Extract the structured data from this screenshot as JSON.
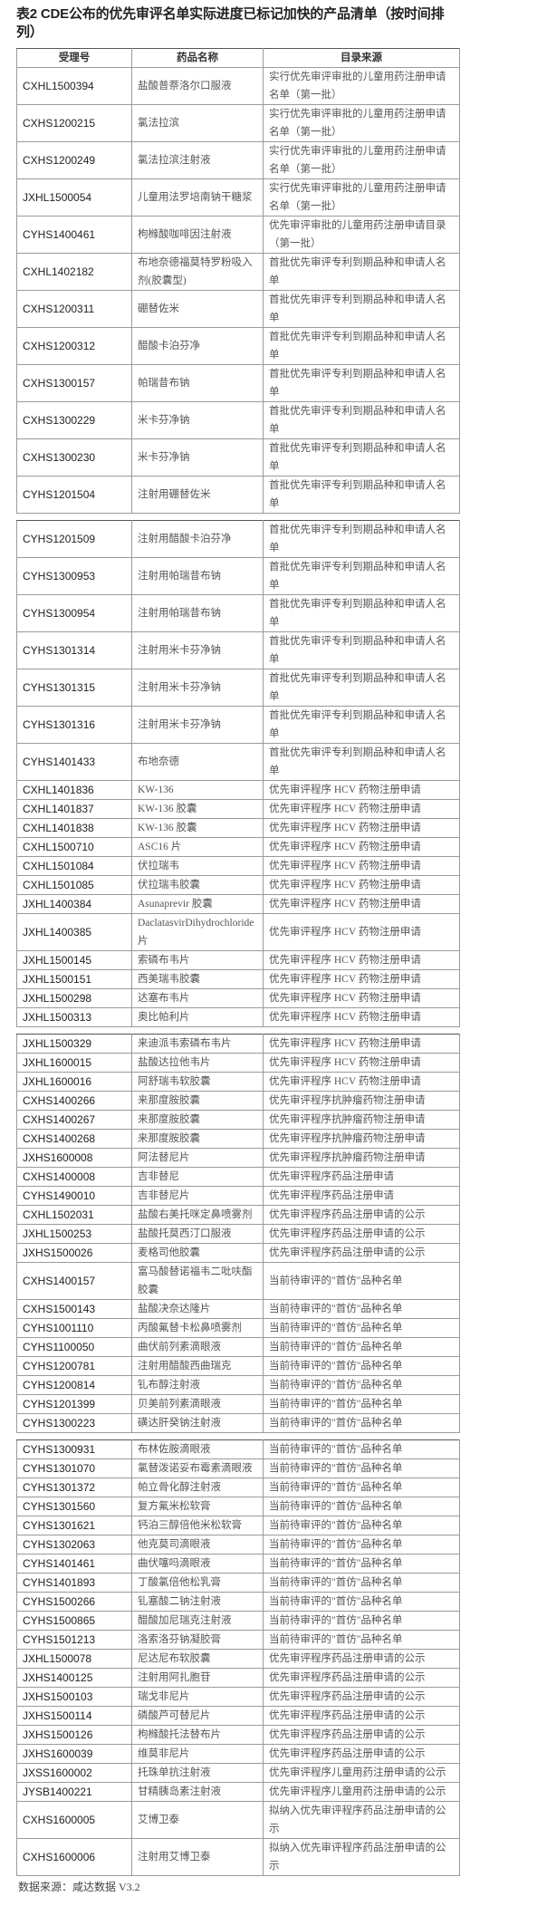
{
  "title": "表2 CDE公布的优先审评名单实际进度已标记加快的产品清单（按时间排列）",
  "headers": [
    "受理号",
    "药品名称",
    "目录来源"
  ],
  "segments": [
    [
      [
        "CXHL1500394",
        "盐酸普萘洛尔口服液",
        "实行优先审评审批的儿童用药注册申请名单（第一批）"
      ],
      [
        "CXHS1200215",
        "氯法拉滨",
        "实行优先审评审批的儿童用药注册申请名单（第一批）"
      ],
      [
        "CXHS1200249",
        "氯法拉滨注射液",
        "实行优先审评审批的儿童用药注册申请名单（第一批）"
      ],
      [
        "JXHL1500054",
        "儿童用法罗培南钠干糖浆",
        "实行优先审评审批的儿童用药注册申请名单（第一批）"
      ],
      [
        "CYHS1400461",
        "枸橼酸咖啡因注射液",
        "优先审评审批的儿童用药注册申请目录（第一批）"
      ],
      [
        "CXHL1402182",
        "布地奈德福莫特罗粉吸入剂(胶囊型)",
        "首批优先审评专利到期品种和申请人名单"
      ],
      [
        "CXHS1200311",
        "硼替佐米",
        "首批优先审评专利到期品种和申请人名单"
      ],
      [
        "CXHS1200312",
        "醋酸卡泊芬净",
        "首批优先审评专利到期品种和申请人名单"
      ],
      [
        "CXHS1300157",
        "帕瑞昔布钠",
        "首批优先审评专利到期品种和申请人名单"
      ],
      [
        "CXHS1300229",
        "米卡芬净钠",
        "首批优先审评专利到期品种和申请人名单"
      ],
      [
        "CXHS1300230",
        "米卡芬净钠",
        "首批优先审评专利到期品种和申请人名单"
      ],
      [
        "CYHS1201504",
        "注射用硼替佐米",
        "首批优先审评专利到期品种和申请人名单"
      ]
    ],
    [
      [
        "CYHS1201509",
        "注射用醋酸卡泊芬净",
        "首批优先审评专利到期品种和申请人名单"
      ],
      [
        "CYHS1300953",
        "注射用帕瑞昔布钠",
        "首批优先审评专利到期品种和申请人名单"
      ],
      [
        "CYHS1300954",
        "注射用帕瑞昔布钠",
        "首批优先审评专利到期品种和申请人名单"
      ],
      [
        "CYHS1301314",
        "注射用米卡芬净钠",
        "首批优先审评专利到期品种和申请人名单"
      ],
      [
        "CYHS1301315",
        "注射用米卡芬净钠",
        "首批优先审评专利到期品种和申请人名单"
      ],
      [
        "CYHS1301316",
        "注射用米卡芬净钠",
        "首批优先审评专利到期品种和申请人名单"
      ],
      [
        "CYHS1401433",
        "布地奈德",
        "首批优先审评专利到期品种和申请人名单"
      ],
      [
        "CXHL1401836",
        "KW-136",
        "优先审评程序 HCV 药物注册申请"
      ],
      [
        "CXHL1401837",
        "KW-136 胶囊",
        "优先审评程序 HCV 药物注册申请"
      ],
      [
        "CXHL1401838",
        "KW-136 胶囊",
        "优先审评程序 HCV 药物注册申请"
      ],
      [
        "CXHL1500710",
        "ASC16 片",
        "优先审评程序 HCV 药物注册申请"
      ],
      [
        "CXHL1501084",
        "伏拉瑞韦",
        "优先审评程序 HCV 药物注册申请"
      ],
      [
        "CXHL1501085",
        "伏拉瑞韦胶囊",
        "优先审评程序 HCV 药物注册申请"
      ],
      [
        "JXHL1400384",
        "Asunaprevir 胶囊",
        "优先审评程序 HCV 药物注册申请"
      ],
      [
        "JXHL1400385",
        "DaclatasvirDihydrochloride 片",
        "优先审评程序 HCV 药物注册申请"
      ],
      [
        "JXHL1500145",
        "索磷布韦片",
        "优先审评程序 HCV 药物注册申请"
      ],
      [
        "JXHL1500151",
        "西美瑞韦胶囊",
        "优先审评程序 HCV 药物注册申请"
      ],
      [
        "JXHL1500298",
        "达塞布韦片",
        "优先审评程序 HCV 药物注册申请"
      ],
      [
        "JXHL1500313",
        "奥比帕利片",
        "优先审评程序 HCV 药物注册申请"
      ]
    ],
    [
      [
        "JXHL1500329",
        "来迪派韦索磷布韦片",
        "优先审评程序 HCV 药物注册申请"
      ],
      [
        "JXHL1600015",
        "盐酸达拉他韦片",
        "优先审评程序 HCV 药物注册申请"
      ],
      [
        "JXHL1600016",
        "阿舒瑞韦软胶囊",
        "优先审评程序 HCV 药物注册申请"
      ],
      [
        "CXHS1400266",
        "来那度胺胶囊",
        "优先审评程序抗肿瘤药物注册申请"
      ],
      [
        "CXHS1400267",
        "来那度胺胶囊",
        "优先审评程序抗肿瘤药物注册申请"
      ],
      [
        "CXHS1400268",
        "来那度胺胶囊",
        "优先审评程序抗肿瘤药物注册申请"
      ],
      [
        "JXHS1600008",
        "阿法替尼片",
        "优先审评程序抗肿瘤药物注册申请"
      ],
      [
        "CXHS1400008",
        "吉非替尼",
        "优先审评程序药品注册申请"
      ],
      [
        "CYHS1490010",
        "吉非替尼片",
        "优先审评程序药品注册申请"
      ],
      [
        "CXHL1502031",
        "盐酸右美托咪定鼻喷雾剂",
        "优先审评程序药品注册申请的公示"
      ],
      [
        "JXHL1500253",
        "盐酸托莫西汀口服液",
        "优先审评程序药品注册申请的公示"
      ],
      [
        "JXHS1500026",
        "麦格司他胶囊",
        "优先审评程序药品注册申请的公示"
      ],
      [
        "CXHS1400157",
        "富马酸替诺福韦二吡呋酯胶囊",
        "当前待审评的\"首仿\"品种名单"
      ],
      [
        "CXHS1500143",
        "盐酸决奈达隆片",
        "当前待审评的\"首仿\"品种名单"
      ],
      [
        "CYHS1001110",
        "丙酸氟替卡松鼻喷雾剂",
        "当前待审评的\"首仿\"品种名单"
      ],
      [
        "CYHS1100050",
        "曲伏前列素滴眼液",
        "当前待审评的\"首仿\"品种名单"
      ],
      [
        "CYHS1200781",
        "注射用醋酸西曲瑞克",
        "当前待审评的\"首仿\"品种名单"
      ],
      [
        "CYHS1200814",
        "钆布醇注射液",
        "当前待审评的\"首仿\"品种名单"
      ],
      [
        "CYHS1201399",
        "贝美前列素滴眼液",
        "当前待审评的\"首仿\"品种名单"
      ],
      [
        "CYHS1300223",
        "磺达肝癸钠注射液",
        "当前待审评的\"首仿\"品种名单"
      ]
    ],
    [
      [
        "CYHS1300931",
        "布林佐胺滴眼液",
        "当前待审评的\"首仿\"品种名单"
      ],
      [
        "CYHS1301070",
        "氯替泼诺妥布霉素滴眼液",
        "当前待审评的\"首仿\"品种名单"
      ],
      [
        "CYHS1301372",
        "帕立骨化醇注射液",
        "当前待审评的\"首仿\"品种名单"
      ],
      [
        "CYHS1301560",
        "复方氟米松软膏",
        "当前待审评的\"首仿\"品种名单"
      ],
      [
        "CYHS1301621",
        "钙泊三醇倍他米松软膏",
        "当前待审评的\"首仿\"品种名单"
      ],
      [
        "CYHS1302063",
        "他克莫司滴眼液",
        "当前待审评的\"首仿\"品种名单"
      ],
      [
        "CYHS1401461",
        "曲伏噻吗滴眼液",
        "当前待审评的\"首仿\"品种名单"
      ],
      [
        "CYHS1401893",
        "丁酸氯倍他松乳膏",
        "当前待审评的\"首仿\"品种名单"
      ],
      [
        "CYHS1500266",
        "钆塞酸二钠注射液",
        "当前待审评的\"首仿\"品种名单"
      ],
      [
        "CYHS1500865",
        "醋酸加尼瑞克注射液",
        "当前待审评的\"首仿\"品种名单"
      ],
      [
        "CYHS1501213",
        "洛索洛芬钠凝胶膏",
        "当前待审评的\"首仿\"品种名单"
      ],
      [
        "JXHL1500078",
        "尼达尼布软胶囊",
        "优先审评程序药品注册申请的公示"
      ],
      [
        "JXHS1400125",
        "注射用阿扎胞苷",
        "优先审评程序药品注册申请的公示"
      ],
      [
        "JXHS1500103",
        "瑞戈非尼片",
        "优先审评程序药品注册申请的公示"
      ],
      [
        "JXHS1500114",
        "磷酸芦可替尼片",
        "优先审评程序药品注册申请的公示"
      ],
      [
        "JXHS1500126",
        "枸橼酸托法替布片",
        "优先审评程序药品注册申请的公示"
      ],
      [
        "JXHS1600039",
        "维莫非尼片",
        "优先审评程序药品注册申请的公示"
      ],
      [
        "JXSS1600002",
        "托珠单抗注射液",
        "优先审评程序儿童用药注册申请的公示"
      ],
      [
        "JYSB1400221",
        "甘精胰岛素注射液",
        "优先审评程序儿童用药注册申请的公示"
      ],
      [
        "CXHS1600005",
        "艾博卫泰",
        "拟纳入优先审评程序药品注册申请的公示"
      ],
      [
        "CXHS1600006",
        "注射用艾博卫泰",
        "拟纳入优先审评程序药品注册申请的公示"
      ]
    ]
  ],
  "footer": "数据来源：咸达数据 V3.2"
}
